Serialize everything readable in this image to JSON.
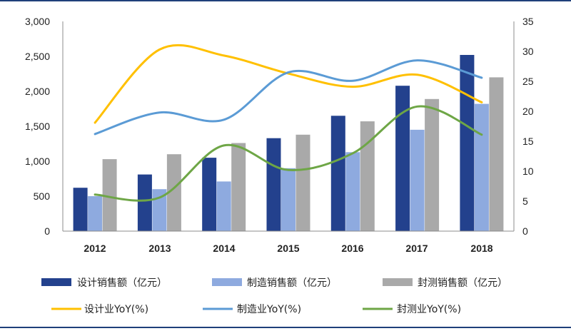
{
  "colors": {
    "design_bar": "#23418d",
    "manufacture_bar": "#8eaadf",
    "packaging_bar": "#a9a9a9",
    "design_line": "#ffc000",
    "manufacture_line": "#5b9bd5",
    "packaging_line": "#6ea646",
    "frame_rule": "#1f3f7a"
  },
  "chart_data": {
    "type": "bar",
    "categories": [
      "2012",
      "2013",
      "2014",
      "2015",
      "2016",
      "2017",
      "2018"
    ],
    "left_axis": {
      "ylim": [
        0,
        3000
      ],
      "ticks": [
        "0",
        "500",
        "1,000",
        "1,500",
        "2,000",
        "2,500",
        "3,000"
      ],
      "tick_values": [
        0,
        500,
        1000,
        1500,
        2000,
        2500,
        3000
      ]
    },
    "right_axis": {
      "ylim": [
        0,
        35
      ],
      "ticks": [
        "0",
        "5",
        "10",
        "15",
        "20",
        "25",
        "30",
        "35"
      ],
      "tick_values": [
        0,
        5,
        10,
        15,
        20,
        25,
        30,
        35
      ]
    },
    "bar_series": [
      {
        "name": "设计销售额（亿元）",
        "values": [
          620,
          810,
          1050,
          1330,
          1650,
          2080,
          2520
        ]
      },
      {
        "name": "制造销售额（亿元）",
        "values": [
          500,
          600,
          710,
          900,
          1130,
          1450,
          1820
        ]
      },
      {
        "name": "封测销售额（亿元）",
        "values": [
          1030,
          1100,
          1260,
          1380,
          1570,
          1890,
          2200
        ]
      }
    ],
    "line_series": [
      {
        "name": "设计业YoY(%)",
        "values": [
          18.1,
          30.3,
          29.3,
          26.3,
          24.1,
          26.1,
          21.5
        ]
      },
      {
        "name": "制造业YoY(%)",
        "values": [
          16.2,
          19.8,
          18.6,
          26.5,
          25.1,
          28.5,
          25.6
        ]
      },
      {
        "name": "封测业YoY(%)",
        "values": [
          6.1,
          5.6,
          14.3,
          10.2,
          13.0,
          20.8,
          16.1
        ]
      }
    ],
    "grid": false,
    "legend_position": "bottom"
  }
}
